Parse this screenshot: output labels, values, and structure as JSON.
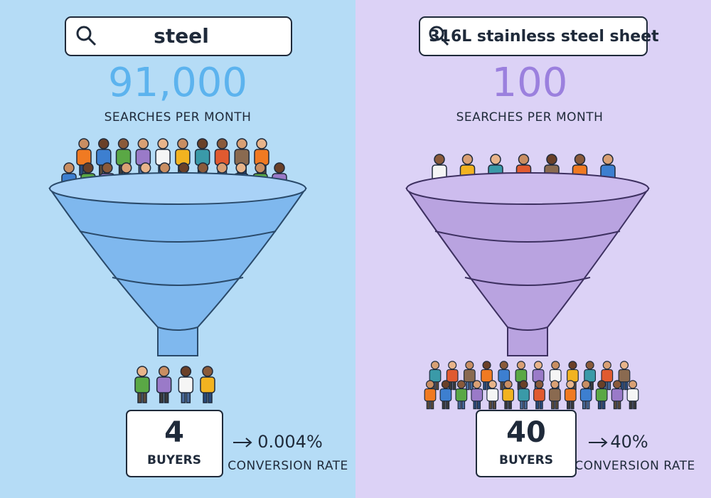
{
  "panels": [
    {
      "query": "steel",
      "searches": "91,000",
      "searches_label": "SEARCHES PER MONTH",
      "buyers": "4",
      "buyers_label": "BUYERS",
      "conversion": "0.004%",
      "conversion_label": "CONVERSION RATE"
    },
    {
      "query": "316L stainless steel sheet",
      "searches": "100",
      "searches_label": "SEARCHES PER MONTH",
      "buyers": "40",
      "buyers_label": "BUYERS",
      "conversion": "40%",
      "conversion_label": "CONVERSION RATE"
    }
  ]
}
